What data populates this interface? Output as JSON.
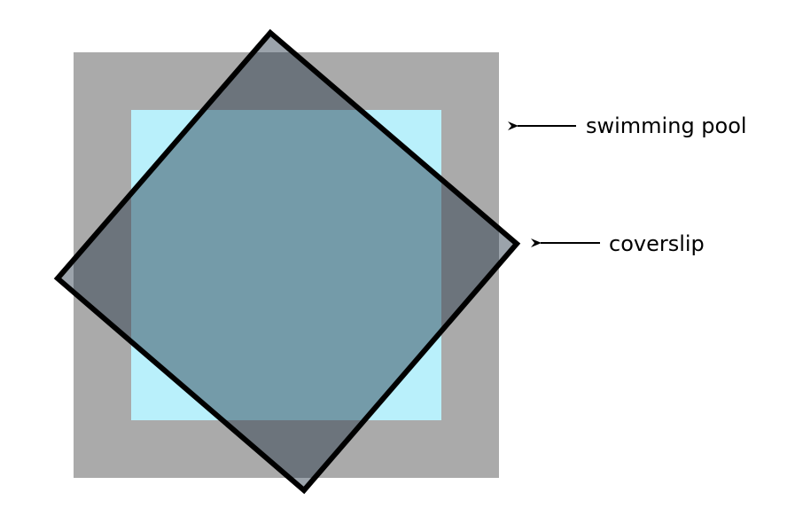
{
  "labels": {
    "swimming_pool": "swimming pool",
    "coverslip": "coverslip"
  },
  "colors": {
    "background": "#ffffff",
    "pool_rim": "#aaaaaa",
    "pool_water": "#b9f0fb",
    "coverslip_fill": "#223344",
    "coverslip_opacity": 0.45,
    "coverslip_stroke": "#000000",
    "arrow": "#000000"
  },
  "icons": {
    "pool_arrow": "left-arrow-icon",
    "coverslip_arrow": "left-arrow-icon"
  }
}
